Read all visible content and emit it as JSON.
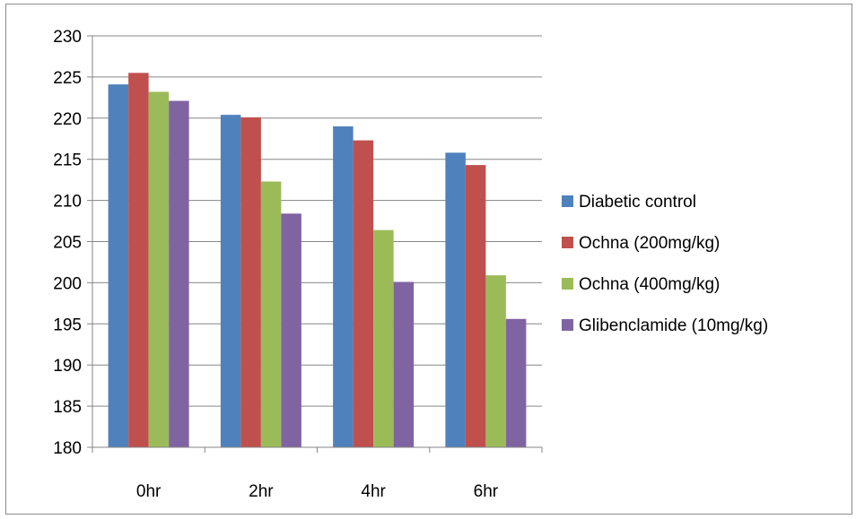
{
  "chart_data": {
    "type": "bar",
    "title": "",
    "xlabel": "",
    "ylabel": "",
    "categories": [
      "0hr",
      "2hr",
      "4hr",
      "6hr"
    ],
    "ylim": [
      180,
      230
    ],
    "yticks": [
      180,
      185,
      190,
      195,
      200,
      205,
      210,
      215,
      220,
      225,
      230
    ],
    "grid": "horizontal",
    "legend_position": "right",
    "series": [
      {
        "name": "Diabetic control",
        "color": "#4F81BD",
        "values": [
          224.1,
          220.4,
          219.0,
          215.8
        ]
      },
      {
        "name": "Ochna (200mg/kg)",
        "color": "#C0504D",
        "values": [
          225.5,
          220.1,
          217.3,
          214.3
        ]
      },
      {
        "name": "Ochna (400mg/kg)",
        "color": "#9BBB59",
        "values": [
          223.2,
          212.3,
          206.4,
          200.9
        ]
      },
      {
        "name": "Glibenclamide (10mg/kg)",
        "color": "#8064A2",
        "values": [
          222.1,
          208.4,
          200.1,
          195.6
        ]
      }
    ]
  }
}
